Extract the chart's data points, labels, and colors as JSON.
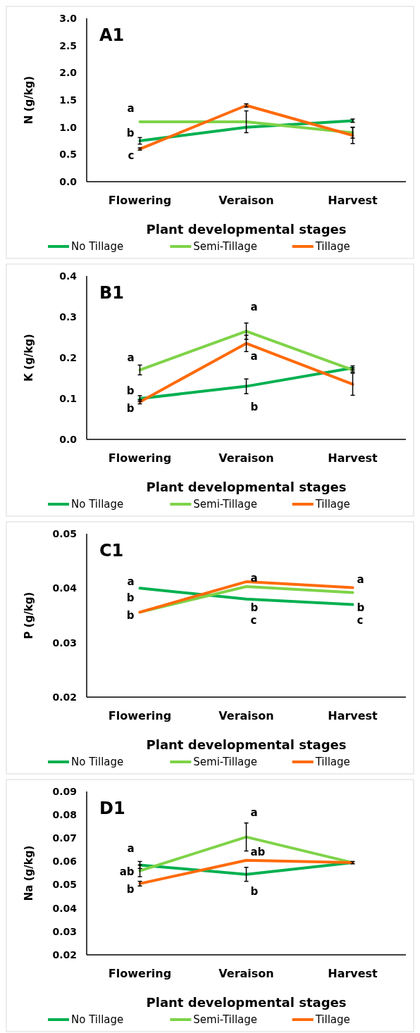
{
  "chart_data": [
    {
      "type": "line",
      "title": "A1",
      "xlabel": "Plant developmental stages",
      "ylabel": "N (g/kg)",
      "categories": [
        "Flowering",
        "Veraison",
        "Harvest"
      ],
      "ylim": [
        0,
        3
      ],
      "yticks": [
        {
          "value": 0,
          "label": "0.0"
        },
        {
          "value": 0.5,
          "label": "0.5"
        },
        {
          "value": 1,
          "label": "1.0"
        },
        {
          "value": 1.5,
          "label": "1.5"
        },
        {
          "value": 2,
          "label": "2.0"
        },
        {
          "value": 2.5,
          "label": "2.5"
        },
        {
          "value": 3,
          "label": "3.0"
        }
      ],
      "grid": false,
      "legend": "bottom",
      "marker": "none",
      "line_style": "solid",
      "series": [
        {
          "name": "No Tillage",
          "color": "#00b050",
          "values": [
            0.75,
            1.0,
            1.12
          ],
          "errors": [
            0.06,
            null,
            0.03
          ]
        },
        {
          "name": "Semi-Tillage",
          "color": "#7ed348",
          "values": [
            1.1,
            1.1,
            0.9
          ],
          "errors": [
            null,
            0.2,
            0.1
          ]
        },
        {
          "name": "Tillage",
          "color": "#ff6a0a",
          "values": [
            0.6,
            1.4,
            0.85
          ],
          "errors": [
            0.02,
            0.03,
            0.15
          ]
        }
      ],
      "annotations": [
        "a",
        "b",
        "c"
      ]
    },
    {
      "type": "line",
      "title": "B1",
      "xlabel": "Plant developmental stages",
      "ylabel": "K (g/kg)",
      "categories": [
        "Flowering",
        "Veraison",
        "Harvest"
      ],
      "ylim": [
        0,
        0.4
      ],
      "yticks": [
        {
          "value": 0,
          "label": "0.0"
        },
        0.1,
        0.2,
        0.3,
        0.4
      ],
      "grid": false,
      "legend": "bottom",
      "marker": "none",
      "line_style": "solid",
      "series": [
        {
          "name": "No Tillage",
          "color": "#00b050",
          "values": [
            0.1,
            0.13,
            0.175
          ],
          "errors": [
            0.007,
            0.018,
            0.005
          ]
        },
        {
          "name": "Semi-Tillage",
          "color": "#7ed348",
          "values": [
            0.17,
            0.265,
            0.17
          ],
          "errors": [
            0.012,
            0.02,
            0.005
          ]
        },
        {
          "name": "Tillage",
          "color": "#ff6a0a",
          "values": [
            0.092,
            0.235,
            0.135
          ],
          "errors": [
            0.005,
            0.02,
            0.027
          ]
        }
      ],
      "annotations": [
        "a",
        "b",
        "b",
        "a",
        "a",
        "b"
      ]
    },
    {
      "type": "line",
      "title": "C1",
      "xlabel": "Plant developmental stages",
      "ylabel": "P (g/kg)",
      "categories": [
        "Flowering",
        "Veraison",
        "Harvest"
      ],
      "ylim": [
        0.02,
        0.05
      ],
      "yticks": [
        0.02,
        0.03,
        0.04,
        0.05
      ],
      "grid": false,
      "legend": "bottom",
      "marker": "none",
      "line_style": "solid",
      "series": [
        {
          "name": "No Tillage",
          "color": "#00b050",
          "values": [
            0.04,
            0.038,
            0.037
          ]
        },
        {
          "name": "Semi-Tillage",
          "color": "#7ed348",
          "values": [
            0.0356,
            0.0403,
            0.0392
          ]
        },
        {
          "name": "Tillage",
          "color": "#ff6a0a",
          "values": [
            0.0356,
            0.0412,
            0.0401
          ]
        }
      ],
      "annotations": [
        "a",
        "b",
        "b",
        "a",
        "b",
        "c",
        "a",
        "b",
        "c"
      ]
    },
    {
      "type": "line",
      "title": "D1",
      "xlabel": "Plant developmental stages",
      "ylabel": "Na (g/kg)",
      "categories": [
        "Flowering",
        "Veraison",
        "Harvest"
      ],
      "ylim": [
        0.02,
        0.09
      ],
      "yticks": [
        0.02,
        0.03,
        0.04,
        0.05,
        0.06,
        0.07,
        0.08,
        0.09
      ],
      "grid": false,
      "legend": "bottom",
      "marker": "none",
      "line_style": "solid",
      "series": [
        {
          "name": "No Tillage",
          "color": "#00b050",
          "values": [
            0.0585,
            0.0545,
            0.0595
          ],
          "errors": [
            0.0015,
            0.003,
            null
          ]
        },
        {
          "name": "Semi-Tillage",
          "color": "#7ed348",
          "values": [
            0.056,
            0.0705,
            0.0595
          ],
          "errors": [
            0.0025,
            0.006,
            null
          ]
        },
        {
          "name": "Tillage",
          "color": "#ff6a0a",
          "values": [
            0.0505,
            0.0605,
            0.0595
          ],
          "errors": [
            0.001,
            null,
            0.0005
          ]
        }
      ],
      "annotations": [
        "a",
        "ab",
        "b",
        "a",
        "ab",
        "b"
      ]
    }
  ]
}
